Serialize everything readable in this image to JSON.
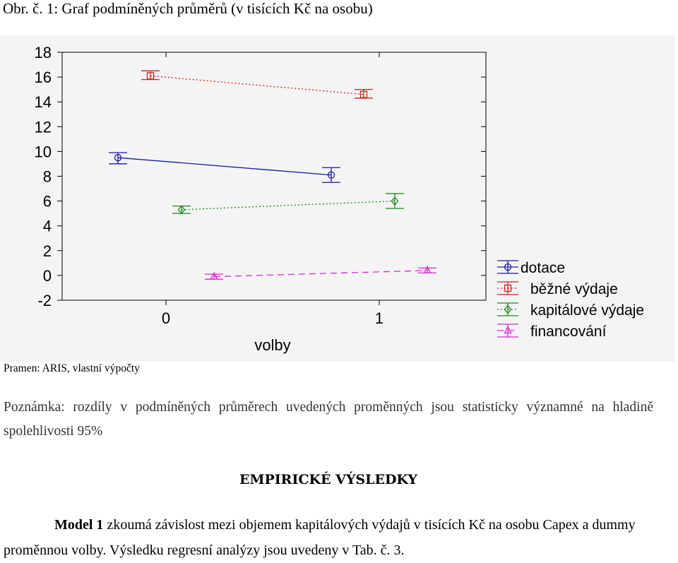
{
  "figure": {
    "caption": "Obr. č. 1: Graf podmíněných průměrů (v tisících Kč na osobu)",
    "source": "Pramen: ARIS, vlastní výpočty"
  },
  "note": "Poznámka: rozdíly v podmíněných průměrech uvedených proměnných jsou statisticky významné na hladině spolehlivosti 95%",
  "section_heading": "EMPIRICKÉ VÝSLEDKY",
  "body": {
    "model_label": "Model 1",
    "text": " zkoumá závislost mezi objemem kapitálových výdajů v tisících Kč na osobu Capex a dummy proměnnou volby. Výsledku regresní analýzy jsou uvedeny v Tab. č. 3."
  },
  "colors": {
    "plot_background": "#f4f4f4",
    "dotace": "#1a1aa0",
    "bezne_vydaje": "#cc2020",
    "kapitalove_vydaje": "#1e8a1e",
    "financovani": "#d42ad4"
  },
  "chart_data": {
    "type": "line",
    "xlabel": "volby",
    "ylabel": "",
    "x_ticks": [
      "0",
      "1"
    ],
    "y_ticks": [
      "18",
      "16",
      "14",
      "12",
      "10",
      "8",
      "6",
      "4",
      "2",
      "0",
      "-2"
    ],
    "ylim": [
      -2,
      18
    ],
    "grid": false,
    "legend_position": "right",
    "series": [
      {
        "name": "dotace",
        "marker": "circle",
        "line": "solid",
        "color_key": "dotace",
        "points": [
          {
            "x": 0,
            "y": 9.5,
            "ci_low": 9.0,
            "ci_high": 9.9
          },
          {
            "x": 1,
            "y": 8.1,
            "ci_low": 7.5,
            "ci_high": 8.7
          }
        ]
      },
      {
        "name": "běžné výdaje",
        "marker": "square",
        "line": "dotted",
        "color_key": "bezne_vydaje",
        "points": [
          {
            "x": 0,
            "y": 16.1,
            "ci_low": 15.8,
            "ci_high": 16.5
          },
          {
            "x": 1,
            "y": 14.6,
            "ci_low": 14.3,
            "ci_high": 15.0
          }
        ]
      },
      {
        "name": "kapitálové výdaje",
        "marker": "diamond",
        "line": "dotted",
        "color_key": "kapitalove_vydaje",
        "points": [
          {
            "x": 0,
            "y": 5.3,
            "ci_low": 5.0,
            "ci_high": 5.6
          },
          {
            "x": 1,
            "y": 6.0,
            "ci_low": 5.4,
            "ci_high": 6.6
          }
        ]
      },
      {
        "name": "financování",
        "marker": "triangle",
        "line": "dashed",
        "color_key": "financovani",
        "points": [
          {
            "x": 0,
            "y": -0.1,
            "ci_low": -0.3,
            "ci_high": 0.1
          },
          {
            "x": 1,
            "y": 0.4,
            "ci_low": 0.2,
            "ci_high": 0.6
          }
        ]
      }
    ]
  }
}
